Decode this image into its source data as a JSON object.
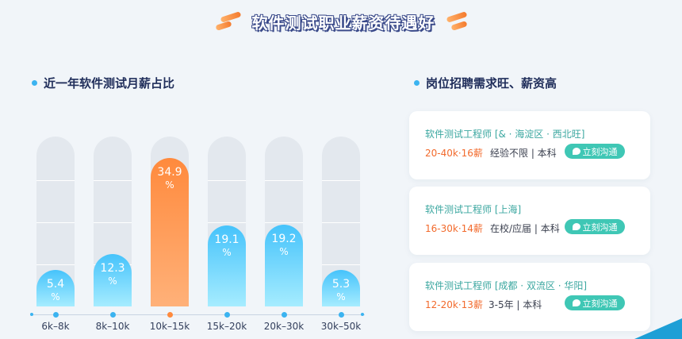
{
  "title": "软件测试职业薪资待遇好",
  "left_section": {
    "heading": "近一年软件测试月薪占比"
  },
  "right_section": {
    "heading": "岗位招聘需求旺、薪资高"
  },
  "chart_data": {
    "type": "bar",
    "categories": [
      "6k–8k",
      "8k–10k",
      "10k–15k",
      "15k–20k",
      "20k–30k",
      "30k–50k"
    ],
    "values": [
      5.4,
      12.3,
      34.9,
      19.1,
      19.2,
      5.3
    ],
    "value_labels": [
      "5.4",
      "12.3",
      "34.9",
      "19.1",
      "19.2",
      "5.3"
    ],
    "unit": "%",
    "highlight_index": 2,
    "ylim": [
      0,
      40
    ],
    "title": "",
    "xlabel": "",
    "ylabel": "",
    "colors": {
      "normal": "#46c3fb",
      "highlight": "#ff8a3d",
      "track": "#e3e8ee"
    }
  },
  "jobs": [
    {
      "title": "软件测试工程师 [& · 海淀区 · 西北旺]",
      "salary": "20-40k·16薪",
      "requirements": "经验不限 | 本科",
      "button": "立刻沟通"
    },
    {
      "title": "软件测试工程师 [上海]",
      "salary": "16-30k·14薪",
      "requirements": "在校/应届 | 本科",
      "button": "立刻沟通"
    },
    {
      "title": "软件测试工程师 [成都 · 双流区 · 华阳]",
      "salary": "12-20k·13薪",
      "requirements": "3-5年 | 本科",
      "button": "立刻沟通"
    }
  ],
  "colors": {
    "accent_teal": "#3fc7b5",
    "salary_orange": "#f26a2c",
    "heading_navy": "#1f2d5a"
  }
}
